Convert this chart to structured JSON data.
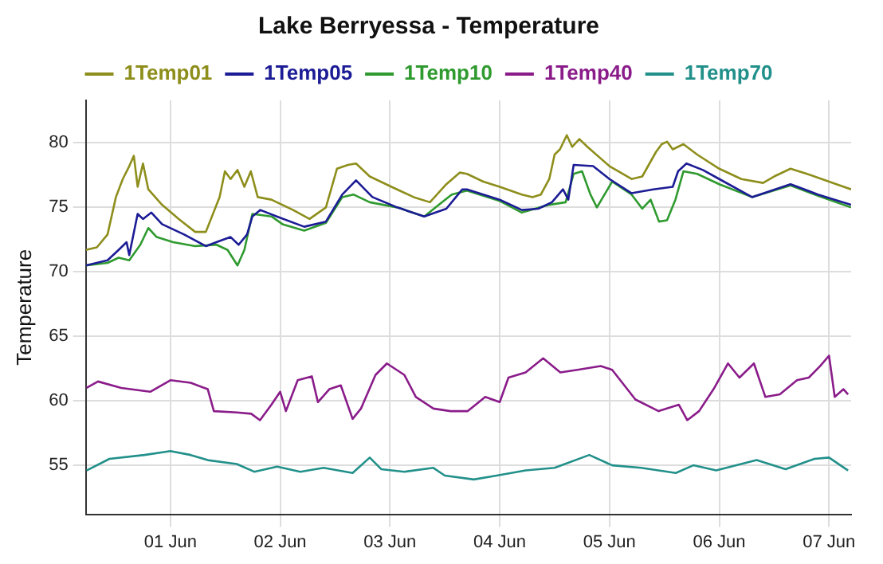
{
  "chart_data": {
    "type": "line",
    "title": "Lake Berryessa - Temperature",
    "ylabel": "Temperature",
    "xlim": [
      "--05-31T05:30",
      "--06-07T04:50"
    ],
    "xticks": [
      {
        "value": "--06-01",
        "label": "01 Jun"
      },
      {
        "value": "--06-02",
        "label": "02 Jun"
      },
      {
        "value": "--06-03",
        "label": "03 Jun"
      },
      {
        "value": "--06-04",
        "label": "04 Jun"
      },
      {
        "value": "--06-05",
        "label": "05 Jun"
      },
      {
        "value": "--06-06",
        "label": "06 Jun"
      },
      {
        "value": "--06-07",
        "label": "07 Jun"
      }
    ],
    "ylim": [
      51.2,
      83.3
    ],
    "yticks": [
      55,
      60,
      65,
      70,
      75,
      80
    ],
    "grid": true,
    "legend": "top",
    "marker": "none",
    "line_style": "solid",
    "series": [
      {
        "name": "1Temp01",
        "color": "#8e8e1c",
        "x": [
          "--05-31T05:30",
          "--05-31T07:55",
          "--05-31T10:15",
          "--05-31T12:05",
          "--05-31T13:35",
          "--05-31T15:00",
          "--05-31T16:00",
          "--05-31T16:50",
          "--05-31T18:00",
          "--05-31T19:10",
          "--05-31T22:10",
          "--06-01T01:50",
          "--06-01T05:25",
          "--06-01T07:45",
          "--06-01T10:45",
          "--06-01T11:55",
          "--06-01T13:10",
          "--06-01T14:40",
          "--06-01T16:10",
          "--06-01T17:35",
          "--06-01T19:05",
          "--06-01T22:05",
          "--06-02T02:50",
          "--06-02T06:25",
          "--06-02T10:00",
          "--06-02T12:25",
          "--06-02T14:50",
          "--06-02T16:35",
          "--06-02T19:35",
          "--06-03T00:20",
          "--06-03T05:10",
          "--06-03T08:45",
          "--06-03T12:20",
          "--06-03T15:15",
          "--06-03T16:50",
          "--06-03T20:25",
          "--06-04T00:00",
          "--06-04T04:50",
          "--06-04T07:10",
          "--06-04T09:00",
          "--06-04T10:50",
          "--06-04T12:00",
          "--06-04T13:10",
          "--06-04T14:40",
          "--06-04T15:50",
          "--06-04T17:25",
          "--06-04T19:10",
          "--06-05T00:00",
          "--06-05T04:50",
          "--06-05T07:10",
          "--06-05T10:10",
          "--06-05T11:25",
          "--06-05T12:35",
          "--06-05T13:50",
          "--06-05T16:10",
          "--06-05T19:10",
          "--06-06T00:00",
          "--06-06T04:50",
          "--06-06T09:35",
          "--06-06T12:00",
          "--06-06T15:35",
          "--06-06T19:10",
          "--06-07T00:00",
          "--06-07T04:50"
        ],
        "values": [
          71.7,
          71.9,
          72.9,
          75.8,
          77.2,
          78.2,
          79.0,
          76.6,
          78.4,
          76.4,
          75.2,
          74.1,
          73.1,
          73.1,
          75.8,
          77.8,
          77.2,
          77.9,
          76.6,
          77.8,
          75.8,
          75.6,
          74.8,
          74.1,
          75.0,
          78.0,
          78.3,
          78.4,
          77.4,
          76.6,
          75.8,
          75.4,
          76.8,
          77.7,
          77.6,
          77.0,
          76.6,
          76.0,
          75.8,
          76.0,
          77.2,
          79.1,
          79.5,
          80.6,
          79.7,
          80.3,
          79.7,
          78.2,
          77.2,
          77.4,
          79.3,
          79.9,
          80.1,
          79.5,
          79.9,
          79.1,
          78.0,
          77.2,
          76.9,
          77.4,
          78.0,
          77.6,
          77.0,
          76.4
        ]
      },
      {
        "name": "1Temp05",
        "color": "#1c1c96",
        "x": [
          "--05-31T05:30",
          "--05-31T10:15",
          "--05-31T12:40",
          "--05-31T14:25",
          "--05-31T15:00",
          "--05-31T16:50",
          "--05-31T18:00",
          "--05-31T19:50",
          "--05-31T22:10",
          "--06-01T03:00",
          "--06-01T07:45",
          "--06-01T10:45",
          "--06-01T13:10",
          "--06-01T14:55",
          "--06-01T16:45",
          "--06-01T17:55",
          "--06-01T19:40",
          "--06-01T23:15",
          "--06-02T05:15",
          "--06-02T10:00",
          "--06-02T13:35",
          "--06-02T16:35",
          "--06-02T20:10",
          "--06-03T01:35",
          "--06-03T07:30",
          "--06-03T12:20",
          "--06-03T15:50",
          "--06-03T16:50",
          "--06-04T00:00",
          "--06-04T04:50",
          "--06-04T08:25",
          "--06-04T11:25",
          "--06-04T13:50",
          "--06-04T15:00",
          "--06-04T16:10",
          "--06-04T20:25",
          "--06-05T00:00",
          "--06-05T04:50",
          "--06-05T09:35",
          "--06-05T13:50",
          "--06-05T15:00",
          "--06-05T16:50",
          "--06-05T20:25",
          "--06-06T00:00",
          "--06-06T07:10",
          "--06-06T15:35",
          "--06-06T21:35",
          "--06-07T04:50"
        ],
        "values": [
          70.5,
          70.9,
          71.7,
          72.3,
          71.3,
          74.5,
          74.1,
          74.6,
          73.7,
          72.9,
          72.0,
          72.4,
          72.7,
          72.1,
          72.9,
          74.3,
          74.8,
          74.3,
          73.5,
          73.9,
          76.0,
          77.1,
          75.8,
          75.0,
          74.3,
          74.9,
          76.4,
          76.4,
          75.6,
          74.8,
          74.9,
          75.4,
          76.4,
          75.6,
          78.3,
          78.2,
          77.2,
          76.1,
          76.4,
          76.6,
          77.8,
          78.4,
          77.9,
          77.2,
          75.8,
          76.8,
          76.0,
          75.2
        ]
      },
      {
        "name": "1Temp10",
        "color": "#2f9a2f",
        "x": [
          "--05-31T05:30",
          "--05-31T10:15",
          "--05-31T12:40",
          "--05-31T15:00",
          "--05-31T17:25",
          "--05-31T19:10",
          "--05-31T21:00",
          "--06-01T00:35",
          "--06-01T05:25",
          "--06-01T10:05",
          "--06-01T12:30",
          "--06-01T14:40",
          "--06-01T16:10",
          "--06-01T17:55",
          "--06-01T22:05",
          "--06-02T00:30",
          "--06-02T05:15",
          "--06-02T10:00",
          "--06-02T13:35",
          "--06-02T16:00",
          "--06-02T19:35",
          "--06-03T01:35",
          "--06-03T07:30",
          "--06-03T13:30",
          "--06-03T16:50",
          "--06-04T00:00",
          "--06-04T04:50",
          "--06-04T10:50",
          "--06-04T14:25",
          "--06-04T16:10",
          "--06-04T18:00",
          "--06-04T19:50",
          "--06-04T21:15",
          "--06-05T00:35",
          "--06-05T04:50",
          "--06-05T07:10",
          "--06-05T09:00",
          "--06-05T10:50",
          "--06-05T12:35",
          "--06-05T14:25",
          "--06-05T16:10",
          "--06-05T19:10",
          "--06-06T00:00",
          "--06-06T07:10",
          "--06-06T15:35",
          "--06-06T21:35",
          "--06-07T04:50"
        ],
        "values": [
          70.5,
          70.7,
          71.1,
          70.9,
          72.1,
          73.4,
          72.7,
          72.3,
          72.0,
          72.1,
          71.7,
          70.5,
          71.7,
          74.5,
          74.3,
          73.7,
          73.2,
          73.8,
          75.8,
          76.0,
          75.4,
          75.0,
          74.3,
          76.0,
          76.3,
          75.5,
          74.6,
          75.2,
          75.4,
          77.6,
          77.8,
          76.0,
          75.0,
          77.0,
          76.0,
          74.9,
          75.6,
          73.9,
          74.0,
          75.6,
          77.8,
          77.6,
          76.8,
          75.8,
          76.7,
          75.9,
          75.0
        ]
      },
      {
        "name": "1Temp40",
        "color": "#8a1c8a",
        "x": [
          "--05-31T05:40",
          "--05-31T08:10",
          "--05-31T13:15",
          "--05-31T19:35",
          "--06-01T00:00",
          "--06-01T04:25",
          "--06-01T08:10",
          "--06-01T09:30",
          "--06-01T14:30",
          "--06-01T17:40",
          "--06-01T19:35",
          "--06-01T22:05",
          "--06-02T00:00",
          "--06-02T01:15",
          "--06-02T03:50",
          "--06-02T06:55",
          "--06-02T08:15",
          "--06-02T10:45",
          "--06-02T13:15",
          "--06-02T15:50",
          "--06-02T17:40",
          "--06-02T20:50",
          "--06-02T23:20",
          "--06-03T03:10",
          "--06-03T05:40",
          "--06-03T09:30",
          "--06-03T13:15",
          "--06-03T17:00",
          "--06-03T20:50",
          "--06-04T00:00",
          "--06-04T01:55",
          "--06-04T05:40",
          "--06-04T09:30",
          "--06-04T13:15",
          "--06-04T17:00",
          "--06-04T22:05",
          "--06-05T00:35",
          "--06-05T05:40",
          "--06-05T10:45",
          "--06-05T15:10",
          "--06-05T17:00",
          "--06-05T19:35",
          "--06-05T22:45",
          "--06-06T01:55",
          "--06-06T04:25",
          "--06-06T07:35",
          "--06-06T10:05",
          "--06-06T13:15",
          "--06-06T17:00",
          "--06-06T19:35",
          "--06-06T22:05",
          "--06-07T00:00",
          "--06-07T01:15",
          "--06-07T03:10",
          "--06-07T04:10"
        ],
        "values": [
          61.0,
          61.5,
          61.0,
          60.7,
          61.6,
          61.4,
          60.9,
          59.2,
          59.1,
          59.0,
          58.5,
          59.7,
          60.7,
          59.2,
          61.6,
          61.9,
          59.9,
          60.9,
          61.2,
          58.6,
          59.4,
          62.0,
          62.9,
          62.0,
          60.3,
          59.4,
          59.2,
          59.2,
          60.3,
          59.9,
          61.8,
          62.2,
          63.3,
          62.2,
          62.4,
          62.7,
          62.4,
          60.1,
          59.2,
          59.7,
          58.5,
          59.2,
          60.9,
          62.9,
          61.8,
          62.9,
          60.3,
          60.5,
          61.6,
          61.8,
          62.7,
          63.5,
          60.3,
          60.9,
          60.5
        ]
      },
      {
        "name": "1Temp70",
        "color": "#22908a",
        "x": [
          "--05-31T05:40",
          "--05-31T10:40",
          "--05-31T18:20",
          "--06-01T00:00",
          "--06-01T04:25",
          "--06-01T08:10",
          "--06-01T14:30",
          "--06-01T18:20",
          "--06-01T23:20",
          "--06-02T04:25",
          "--06-02T09:30",
          "--06-02T15:50",
          "--06-02T19:35",
          "--06-02T22:05",
          "--06-03T03:10",
          "--06-03T09:30",
          "--06-03T12:00",
          "--06-03T18:20",
          "--06-03T23:20",
          "--06-04T05:40",
          "--06-04T12:00",
          "--06-04T19:35",
          "--06-05T00:35",
          "--06-05T06:55",
          "--06-05T14:30",
          "--06-05T18:20",
          "--06-05T23:20",
          "--06-06T08:10",
          "--06-06T14:30",
          "--06-06T20:50",
          "--06-07T00:00",
          "--06-07T04:10"
        ],
        "values": [
          54.6,
          55.5,
          55.8,
          56.1,
          55.8,
          55.4,
          55.1,
          54.5,
          54.9,
          54.5,
          54.8,
          54.4,
          55.6,
          54.7,
          54.5,
          54.8,
          54.2,
          53.9,
          54.2,
          54.6,
          54.8,
          55.8,
          55.0,
          54.8,
          54.4,
          55.0,
          54.6,
          55.4,
          54.7,
          55.5,
          55.6,
          54.6
        ]
      }
    ]
  }
}
